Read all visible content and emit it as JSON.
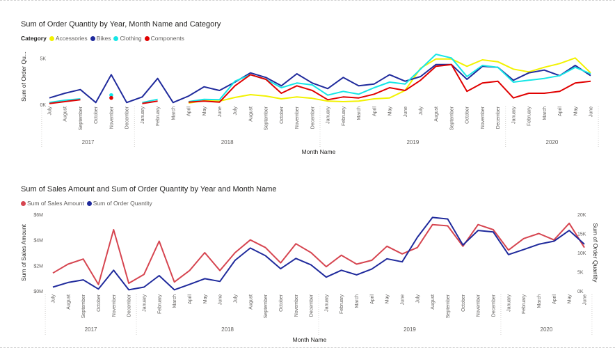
{
  "chart_data": [
    {
      "type": "line",
      "title": "Sum of Order Quantity by Year, Month Name and Category",
      "legend_title": "Category",
      "legend_position": "top-left",
      "xlabel": "Month Name",
      "ylabel": "Sum of Order Qu...",
      "ylim": [
        0,
        6000
      ],
      "yticks": [
        {
          "v": 0,
          "label": "0K"
        },
        {
          "v": 5000,
          "label": "5K"
        }
      ],
      "grid": false,
      "months": [
        "July",
        "August",
        "September",
        "October",
        "November",
        "December",
        "January",
        "February",
        "March",
        "April",
        "May",
        "June",
        "July",
        "August",
        "September",
        "October",
        "November",
        "December",
        "January",
        "February",
        "March",
        "April",
        "May",
        "June",
        "July",
        "August",
        "September",
        "October",
        "November",
        "December",
        "January",
        "February",
        "March",
        "April",
        "May",
        "June"
      ],
      "years": [
        {
          "label": "2017",
          "start": 0,
          "end": 5
        },
        {
          "label": "2018",
          "start": 6,
          "end": 17
        },
        {
          "label": "2019",
          "start": 18,
          "end": 29
        },
        {
          "label": "2020",
          "start": 30,
          "end": 35
        }
      ],
      "series": [
        {
          "name": "Accessories",
          "color": "#f2f200",
          "values": [
            null,
            null,
            null,
            null,
            null,
            null,
            null,
            null,
            null,
            150,
            400,
            350,
            750,
            1050,
            900,
            600,
            800,
            650,
            350,
            300,
            350,
            600,
            700,
            1500,
            3900,
            4900,
            4900,
            4100,
            4800,
            4600,
            3800,
            3500,
            4000,
            4400,
            5000,
            3400
          ]
        },
        {
          "name": "Bikes",
          "color": "#1f2a9c",
          "values": [
            700,
            1200,
            1600,
            200,
            3200,
            200,
            800,
            2800,
            200,
            900,
            1900,
            1500,
            2400,
            3400,
            2900,
            2000,
            3300,
            2300,
            1700,
            2900,
            2000,
            2200,
            3200,
            2500,
            3000,
            4300,
            4300,
            2700,
            4100,
            4000,
            2600,
            3400,
            3700,
            3100,
            4200,
            3100
          ]
        },
        {
          "name": "Clothing",
          "color": "#15e6e6",
          "values": [
            200,
            450,
            600,
            null,
            1000,
            null,
            200,
            550,
            null,
            300,
            550,
            500,
            2500,
            3200,
            2700,
            1800,
            2300,
            2100,
            1000,
            1400,
            1100,
            1800,
            2400,
            2200,
            3800,
            5400,
            5000,
            3000,
            4200,
            4000,
            2400,
            2600,
            2800,
            3100,
            4000,
            3300
          ]
        },
        {
          "name": "Components",
          "color": "#e00000",
          "values": [
            100,
            300,
            500,
            null,
            700,
            null,
            100,
            350,
            null,
            250,
            350,
            250,
            2000,
            3200,
            2700,
            1200,
            2000,
            1500,
            500,
            800,
            700,
            1100,
            1800,
            1500,
            2600,
            4100,
            4300,
            1400,
            2300,
            2500,
            700,
            1200,
            1200,
            1400,
            2300,
            2500
          ]
        }
      ]
    },
    {
      "type": "line",
      "title": "Sum of Sales Amount and Sum of Order Quantity by Year and Month Name",
      "legend_position": "top-left",
      "xlabel": "Month Name",
      "ylabel": "Sum of Sales Amount",
      "y2label": "Sum of Order Quantity",
      "ylim": [
        0,
        6000000
      ],
      "y2lim": [
        0,
        20000
      ],
      "yticks": [
        {
          "v": 0,
          "label": "$0M"
        },
        {
          "v": 2000000,
          "label": "$2M"
        },
        {
          "v": 4000000,
          "label": "$4M"
        },
        {
          "v": 6000000,
          "label": "$6M"
        }
      ],
      "y2ticks": [
        {
          "v": 0,
          "label": "0K"
        },
        {
          "v": 5000,
          "label": "5K"
        },
        {
          "v": 10000,
          "label": "10K"
        },
        {
          "v": 15000,
          "label": "15K"
        },
        {
          "v": 20000,
          "label": "20K"
        }
      ],
      "grid": false,
      "months": [
        "July",
        "August",
        "September",
        "October",
        "November",
        "December",
        "January",
        "February",
        "March",
        "April",
        "May",
        "June",
        "July",
        "August",
        "September",
        "October",
        "November",
        "December",
        "January",
        "February",
        "March",
        "April",
        "May",
        "June",
        "July",
        "August",
        "September",
        "October",
        "November",
        "December",
        "January",
        "February",
        "March",
        "April",
        "May",
        "June"
      ],
      "years": [
        {
          "label": "2017",
          "start": 0,
          "end": 5
        },
        {
          "label": "2018",
          "start": 6,
          "end": 17
        },
        {
          "label": "2019",
          "start": 18,
          "end": 29
        },
        {
          "label": "2020",
          "start": 30,
          "end": 35
        }
      ],
      "series": [
        {
          "name": "Sum of Sales Amount",
          "color": "#d64550",
          "axis": "left",
          "values": [
            1400000,
            2100000,
            2500000,
            500000,
            4800000,
            600000,
            1300000,
            3900000,
            700000,
            1600000,
            3000000,
            1600000,
            3000000,
            4000000,
            3400000,
            2200000,
            3700000,
            3000000,
            1900000,
            2800000,
            2100000,
            2400000,
            3500000,
            2900000,
            3400000,
            5200000,
            5100000,
            3500000,
            5200000,
            4800000,
            3200000,
            4100000,
            4500000,
            4000000,
            5300000,
            3400000
          ]
        },
        {
          "name": "Sum of Order Quantity",
          "color": "#1f2a9c",
          "axis": "right",
          "values": [
            1000,
            2200,
            2900,
            500,
            5400,
            300,
            1000,
            4000,
            300,
            1700,
            3200,
            2500,
            8000,
            11200,
            9200,
            5800,
            8500,
            6800,
            3600,
            5400,
            4200,
            5700,
            8400,
            7600,
            14000,
            19200,
            18800,
            12000,
            15800,
            15400,
            9500,
            10800,
            12200,
            13000,
            15800,
            12200
          ]
        }
      ]
    }
  ]
}
